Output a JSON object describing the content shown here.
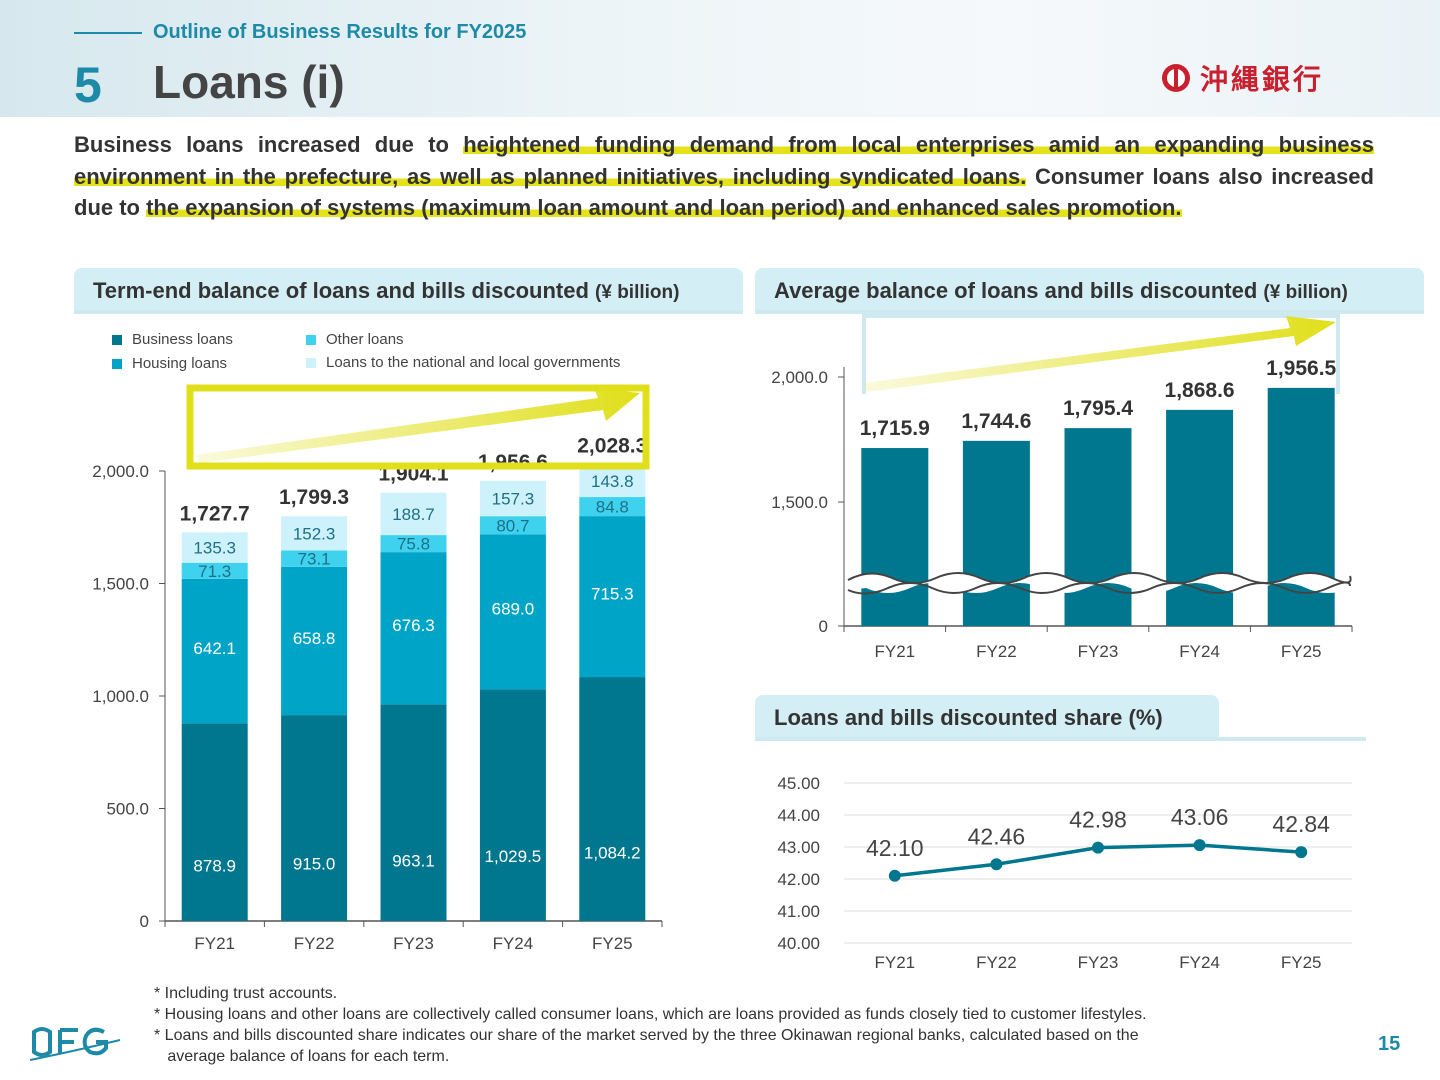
{
  "header": {
    "subtitle": "Outline of Business Results for FY2025",
    "section_number": "5",
    "title": "Loans (i)",
    "bank_logo_text": "沖縄銀行"
  },
  "intro": {
    "p1": "Business loans increased due to ",
    "h1": "heightened funding demand from local enterprises amid an expanding business environment in the prefecture, as well as planned initiatives, including syndicated loans.",
    "p2": " Consumer loans also increased due to ",
    "h2": "the expansion of systems (maximum loan amount and loan period) and enhanced sales promotion.",
    "highlight_color": "#e6e21a"
  },
  "panels": {
    "term_end": {
      "title": "Term-end balance of loans and bills discounted ",
      "unit": "(¥ billion)"
    },
    "average": {
      "title": "Average balance of loans and bills discounted ",
      "unit": "(¥ billion)"
    },
    "share": {
      "title": "Loans and bills discounted share (%)"
    }
  },
  "legend": {
    "business": "Business loans",
    "housing": "Housing loans",
    "other": "Other loans",
    "government": "Loans to the national and local governments"
  },
  "colors": {
    "business": "#00778f",
    "housing": "#00a4c6",
    "other": "#3fd2ee",
    "government": "#cdf2fb",
    "line": "#00778f",
    "accent": "#1d8aa8",
    "arrow": "#e0df1a"
  },
  "chart_data": [
    {
      "id": "term_end",
      "type": "bar",
      "stacked": true,
      "categories": [
        "FY21",
        "FY22",
        "FY23",
        "FY24",
        "FY25"
      ],
      "series": [
        {
          "name": "Business loans",
          "values": [
            878.9,
            915.0,
            963.1,
            1029.5,
            1084.2
          ],
          "labels": [
            "878.9",
            "915.0",
            "963.1",
            "1,029.5",
            "1,084.2"
          ]
        },
        {
          "name": "Housing loans",
          "values": [
            642.1,
            658.8,
            676.3,
            689.0,
            715.3
          ],
          "labels": [
            "642.1",
            "658.8",
            "676.3",
            "689.0",
            "715.3"
          ]
        },
        {
          "name": "Other loans",
          "values": [
            71.3,
            73.1,
            75.8,
            80.7,
            84.8
          ],
          "labels": [
            "71.3",
            "73.1",
            "75.8",
            "80.7",
            "84.8"
          ]
        },
        {
          "name": "Loans to the national and local governments",
          "values": [
            135.3,
            152.3,
            188.7,
            157.3,
            143.8
          ],
          "labels": [
            "135.3",
            "152.3",
            "188.7",
            "157.3",
            "143.8"
          ]
        }
      ],
      "totals": [
        "1,727.7",
        "1,799.3",
        "1,904.1",
        "1,956.6",
        "2,028.3"
      ],
      "ylim": [
        0,
        2200
      ],
      "yticks": [
        0,
        500,
        1000,
        1500,
        2000
      ],
      "ytick_labels": [
        "0",
        "500.0",
        "1,000.0",
        "1,500.0",
        "2,000.0"
      ],
      "legend_position": "top-left"
    },
    {
      "id": "average",
      "type": "bar",
      "axis_break": true,
      "categories": [
        "FY21",
        "FY22",
        "FY23",
        "FY24",
        "FY25"
      ],
      "values": [
        1715.9,
        1744.6,
        1795.4,
        1868.6,
        1956.5
      ],
      "labels": [
        "1,715.9",
        "1,744.6",
        "1,795.4",
        "1,868.6",
        "1,956.5"
      ],
      "yticks": [
        0,
        1500,
        2000
      ],
      "ytick_labels": [
        "0",
        "1,500.0",
        "2,000.0"
      ]
    },
    {
      "id": "share",
      "type": "line",
      "categories": [
        "FY21",
        "FY22",
        "FY23",
        "FY24",
        "FY25"
      ],
      "values": [
        42.1,
        42.46,
        42.98,
        43.06,
        42.84
      ],
      "labels": [
        "42.10",
        "42.46",
        "42.98",
        "43.06",
        "42.84"
      ],
      "ylim": [
        40,
        45
      ],
      "yticks": [
        40,
        41,
        42,
        43,
        44,
        45
      ],
      "ytick_labels": [
        "40.00",
        "41.00",
        "42.00",
        "43.00",
        "44.00",
        "45.00"
      ],
      "grid": true
    }
  ],
  "notes": [
    "* Including trust accounts.",
    "* Housing loans and other loans are collectively called consumer loans, which are loans provided as funds closely tied to customer lifestyles.",
    "* Loans and bills discounted share indicates our share of the market served by the three Okinawan regional banks, calculated based on the",
    "   average balance of loans for each term."
  ],
  "footer": {
    "group_logo": "OFG",
    "page_number": "15"
  }
}
